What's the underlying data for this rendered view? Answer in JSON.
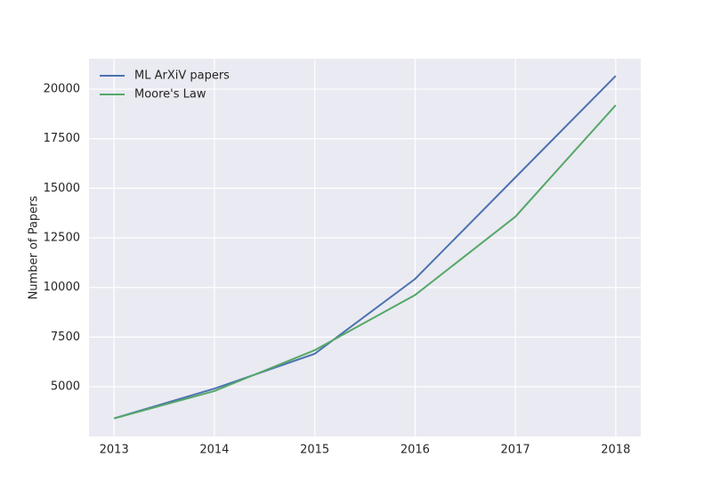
{
  "chart_data": {
    "type": "line",
    "ylabel": "Number of Papers",
    "x": [
      2013,
      2014,
      2015,
      2016,
      2017,
      2018
    ],
    "series": [
      {
        "name": "ML ArXiV papers",
        "color": "#4c72b0",
        "values": [
          3400,
          4900,
          6660,
          10430,
          15550,
          20670
        ]
      },
      {
        "name": "Moore's Law",
        "color": "#55a868",
        "values": [
          3400,
          4780,
          6840,
          9620,
          13570,
          19190
        ]
      }
    ],
    "xlim": [
      2012.75,
      2018.25
    ],
    "xticks": [
      2013,
      2014,
      2015,
      2016,
      2017,
      2018
    ],
    "ylim": [
      2485,
      21530
    ],
    "yticks": [
      5000,
      7500,
      10000,
      12500,
      15000,
      17500,
      20000
    ],
    "grid": true,
    "legend": "upper-left"
  }
}
